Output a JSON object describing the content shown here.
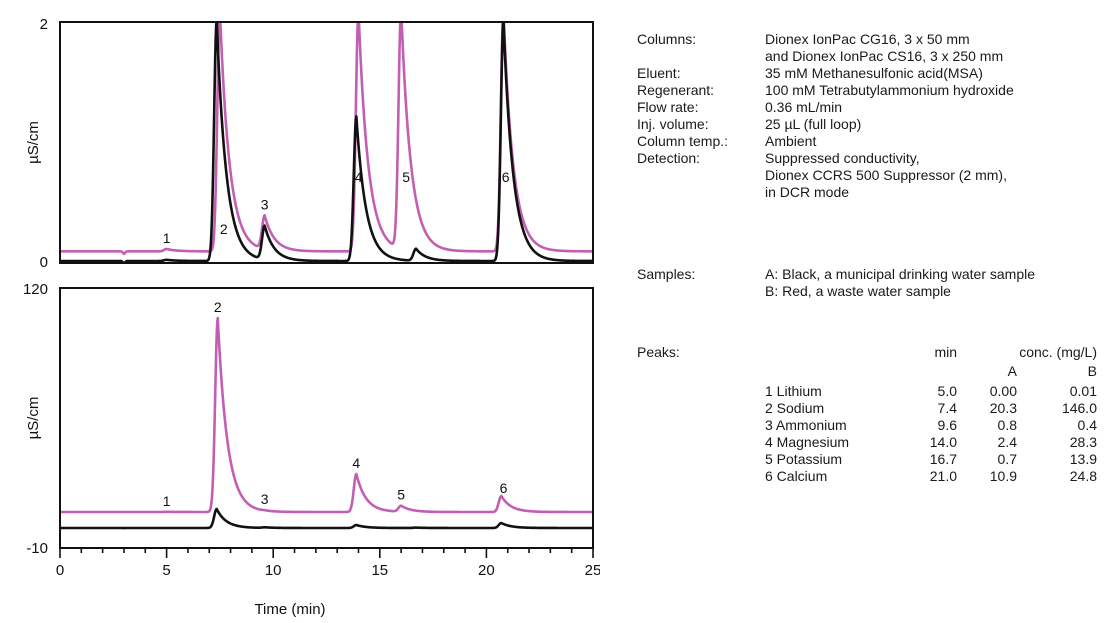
{
  "colors": {
    "sample_a": "#111111",
    "sample_b": "#c35fb3",
    "axis": "#111111"
  },
  "chart_data": [
    {
      "type": "line",
      "panel": "top",
      "ylabel": "µS/cm",
      "ylim": [
        0,
        2
      ],
      "y_ticks": [
        "0",
        "2"
      ],
      "xlim": [
        0,
        25
      ],
      "peak_labels": [
        {
          "label": "1",
          "x": 5.0
        },
        {
          "label": "2",
          "x": 7.4
        },
        {
          "label": "3",
          "x": 9.6
        },
        {
          "label": "4",
          "x": 14.0
        },
        {
          "label": "5",
          "x": 16.0
        },
        {
          "label": "6",
          "x": 20.9
        }
      ],
      "series": [
        {
          "color": "#111111",
          "baseline": 0.0,
          "peaks": [
            {
              "x": 5.0,
              "h": 0.01
            },
            {
              "x": 7.35,
              "h": 2.0
            },
            {
              "x": 9.6,
              "h": 0.28
            },
            {
              "x": 13.9,
              "h": 1.2
            },
            {
              "x": 16.7,
              "h": 0.1
            },
            {
              "x": 20.8,
              "h": 2.0
            }
          ]
        },
        {
          "color": "#c35fb3",
          "baseline": 0.08,
          "peaks": [
            {
              "x": 5.0,
              "h": 0.02
            },
            {
              "x": 7.5,
              "h": 2.0
            },
            {
              "x": 9.6,
              "h": 0.28
            },
            {
              "x": 14.0,
              "h": 2.0
            },
            {
              "x": 16.0,
              "h": 2.0
            },
            {
              "x": 20.8,
              "h": 2.0
            }
          ]
        }
      ]
    },
    {
      "type": "line",
      "panel": "bottom",
      "ylabel": "µS/cm",
      "ylim": [
        -10,
        120
      ],
      "y_ticks": [
        "-10",
        "120"
      ],
      "xlim": [
        0,
        25
      ],
      "x_ticks": [
        "0",
        "5",
        "10",
        "15",
        "20",
        "25"
      ],
      "xlabel": "Time (min)",
      "peak_labels": [
        {
          "label": "1",
          "x": 5.0
        },
        {
          "label": "2",
          "x": 7.4
        },
        {
          "label": "3",
          "x": 9.6
        },
        {
          "label": "4",
          "x": 13.9
        },
        {
          "label": "5",
          "x": 16.0
        },
        {
          "label": "6",
          "x": 20.8
        }
      ],
      "series": [
        {
          "color": "#111111",
          "baseline": 0.0,
          "peaks": [
            {
              "x": 5.0,
              "h": 0.0
            },
            {
              "x": 7.35,
              "h": 9.5
            },
            {
              "x": 9.6,
              "h": 0.3
            },
            {
              "x": 13.9,
              "h": 1.5
            },
            {
              "x": 16.7,
              "h": 0.2
            },
            {
              "x": 20.7,
              "h": 2.5
            }
          ]
        },
        {
          "color": "#c35fb3",
          "baseline": 8.0,
          "peaks": [
            {
              "x": 5.0,
              "h": 0.1
            },
            {
              "x": 7.4,
              "h": 97.0
            },
            {
              "x": 9.6,
              "h": 0.2
            },
            {
              "x": 13.9,
              "h": 19.0
            },
            {
              "x": 16.0,
              "h": 3.0
            },
            {
              "x": 20.7,
              "h": 8.0
            }
          ]
        }
      ]
    }
  ],
  "conditions": [
    {
      "label": "Columns:",
      "value": "Dionex IonPac CG16, 3 x 50 mm"
    },
    {
      "label": "",
      "value": "and Dionex IonPac CS16, 3 x 250 mm"
    },
    {
      "label": "Eluent:",
      "value": "35 mM Methanesulfonic acid(MSA)"
    },
    {
      "label": "Regenerant:",
      "value": "100 mM Tetrabutylammonium hydroxide"
    },
    {
      "label": "Flow rate:",
      "value": "0.36 mL/min"
    },
    {
      "label": "Inj. volume:",
      "value": "25 µL (full loop)"
    },
    {
      "label": "Column temp.:",
      "value": "Ambient"
    },
    {
      "label": "Detection:",
      "value": "Suppressed conductivity,"
    },
    {
      "label": "",
      "value": "Dionex CCRS 500 Suppressor (2 mm),"
    },
    {
      "label": "",
      "value": "in DCR mode"
    }
  ],
  "samples": {
    "label": "Samples:",
    "lines": [
      "A: Black, a municipal drinking water sample",
      "B: Red, a waste water sample"
    ]
  },
  "peaks_table": {
    "label": "Peaks:",
    "min_header": "min",
    "conc_header": "conc. (mg/L)",
    "col_a": "A",
    "col_b": "B",
    "rows": [
      {
        "name": "1 Lithium",
        "min": "5.0",
        "a": "0.00",
        "b": "0.01"
      },
      {
        "name": "2 Sodium",
        "min": "7.4",
        "a": "20.3",
        "b": "146.0"
      },
      {
        "name": "3 Ammonium",
        "min": "9.6",
        "a": "0.8",
        "b": "0.4"
      },
      {
        "name": "4 Magnesium",
        "min": "14.0",
        "a": "2.4",
        "b": "28.3"
      },
      {
        "name": "5 Potassium",
        "min": "16.7",
        "a": "0.7",
        "b": "13.9"
      },
      {
        "name": "6 Calcium",
        "min": "21.0",
        "a": "10.9",
        "b": "24.8"
      }
    ]
  }
}
